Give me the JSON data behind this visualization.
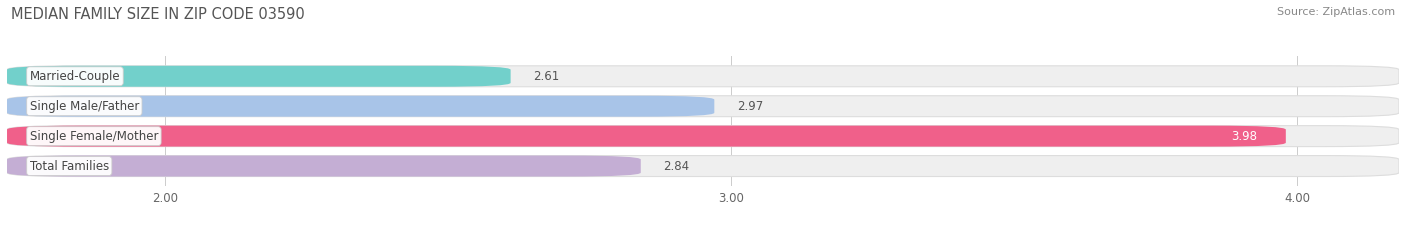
{
  "title": "MEDIAN FAMILY SIZE IN ZIP CODE 03590",
  "source": "Source: ZipAtlas.com",
  "categories": [
    "Married-Couple",
    "Single Male/Father",
    "Single Female/Mother",
    "Total Families"
  ],
  "values": [
    2.61,
    2.97,
    3.98,
    2.84
  ],
  "bar_colors": [
    "#72d0cb",
    "#a8c4e8",
    "#f0608a",
    "#c4aed4"
  ],
  "value_text_colors": [
    "#555555",
    "#555555",
    "#ffffff",
    "#555555"
  ],
  "bar_bg_color": "#efefef",
  "bar_border_color": "#dddddd",
  "xlim_min": 1.72,
  "xlim_max": 4.18,
  "xticks": [
    2.0,
    3.0,
    4.0
  ],
  "xtick_labels": [
    "2.00",
    "3.00",
    "4.00"
  ],
  "title_fontsize": 10.5,
  "label_fontsize": 8.5,
  "value_fontsize": 8.5,
  "source_fontsize": 8.0
}
